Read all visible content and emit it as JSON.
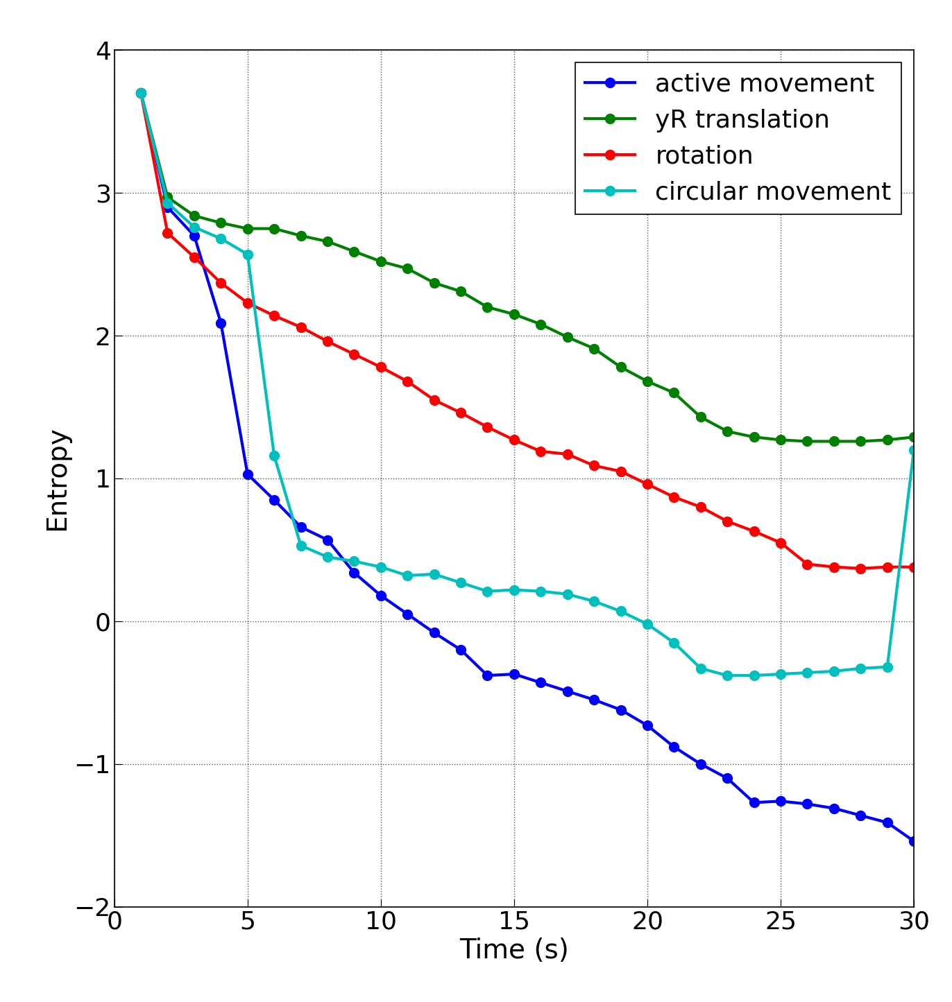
{
  "chart_data": {
    "type": "line",
    "x_label": "Time (s)",
    "y_label": "Entropy",
    "x": [
      1,
      2,
      3,
      4,
      5,
      6,
      7,
      8,
      9,
      10,
      11,
      12,
      13,
      14,
      15,
      16,
      17,
      18,
      19,
      20,
      21,
      22,
      23,
      24,
      25,
      26,
      27,
      28,
      29,
      30
    ],
    "series": [
      {
        "name": "active movement",
        "color": "#0000ff",
        "marker": "o",
        "line_style": "solid",
        "values": [
          3.7,
          2.9,
          2.7,
          2.09,
          1.03,
          0.85,
          0.66,
          0.57,
          0.34,
          0.18,
          0.05,
          -0.08,
          -0.2,
          -0.38,
          -0.37,
          -0.43,
          -0.49,
          -0.55,
          -0.62,
          -0.73,
          -0.88,
          -1.0,
          -1.1,
          -1.27,
          -1.26,
          -1.28,
          -1.31,
          -1.36,
          -1.41,
          -1.54
        ]
      },
      {
        "name": "yR translation",
        "color": "#008000",
        "marker": "o",
        "line_style": "solid",
        "values": [
          3.7,
          2.97,
          2.84,
          2.79,
          2.75,
          2.75,
          2.7,
          2.66,
          2.59,
          2.52,
          2.47,
          2.37,
          2.31,
          2.2,
          2.15,
          2.08,
          1.99,
          1.91,
          1.78,
          1.68,
          1.6,
          1.43,
          1.33,
          1.29,
          1.27,
          1.26,
          1.26,
          1.26,
          1.27,
          1.29
        ]
      },
      {
        "name": "rotation",
        "color": "#ff0000",
        "marker": "o",
        "line_style": "solid",
        "values": [
          3.7,
          2.72,
          2.55,
          2.37,
          2.23,
          2.14,
          2.06,
          1.96,
          1.87,
          1.78,
          1.68,
          1.55,
          1.46,
          1.36,
          1.27,
          1.19,
          1.17,
          1.09,
          1.05,
          0.96,
          0.87,
          0.8,
          0.7,
          0.63,
          0.55,
          0.4,
          0.38,
          0.37,
          0.38,
          0.38
        ]
      },
      {
        "name": "circular movement",
        "color": "#00bfbf",
        "marker": "o",
        "line_style": "solid",
        "values": [
          3.7,
          2.93,
          2.76,
          2.68,
          2.57,
          1.16,
          0.53,
          0.45,
          0.42,
          0.38,
          0.32,
          0.33,
          0.27,
          0.21,
          0.22,
          0.21,
          0.19,
          0.14,
          0.07,
          -0.02,
          -0.15,
          -0.33,
          -0.38,
          -0.38,
          -0.37,
          -0.36,
          -0.35,
          -0.33,
          -0.32,
          1.2
        ]
      }
    ],
    "xlim": [
      0,
      30
    ],
    "ylim": [
      -2,
      4
    ],
    "xticks": [
      0,
      5,
      10,
      15,
      20,
      25,
      30
    ],
    "yticks": [
      -2,
      -1,
      0,
      1,
      2,
      3,
      4
    ],
    "grid": true,
    "legend": "upper right"
  }
}
